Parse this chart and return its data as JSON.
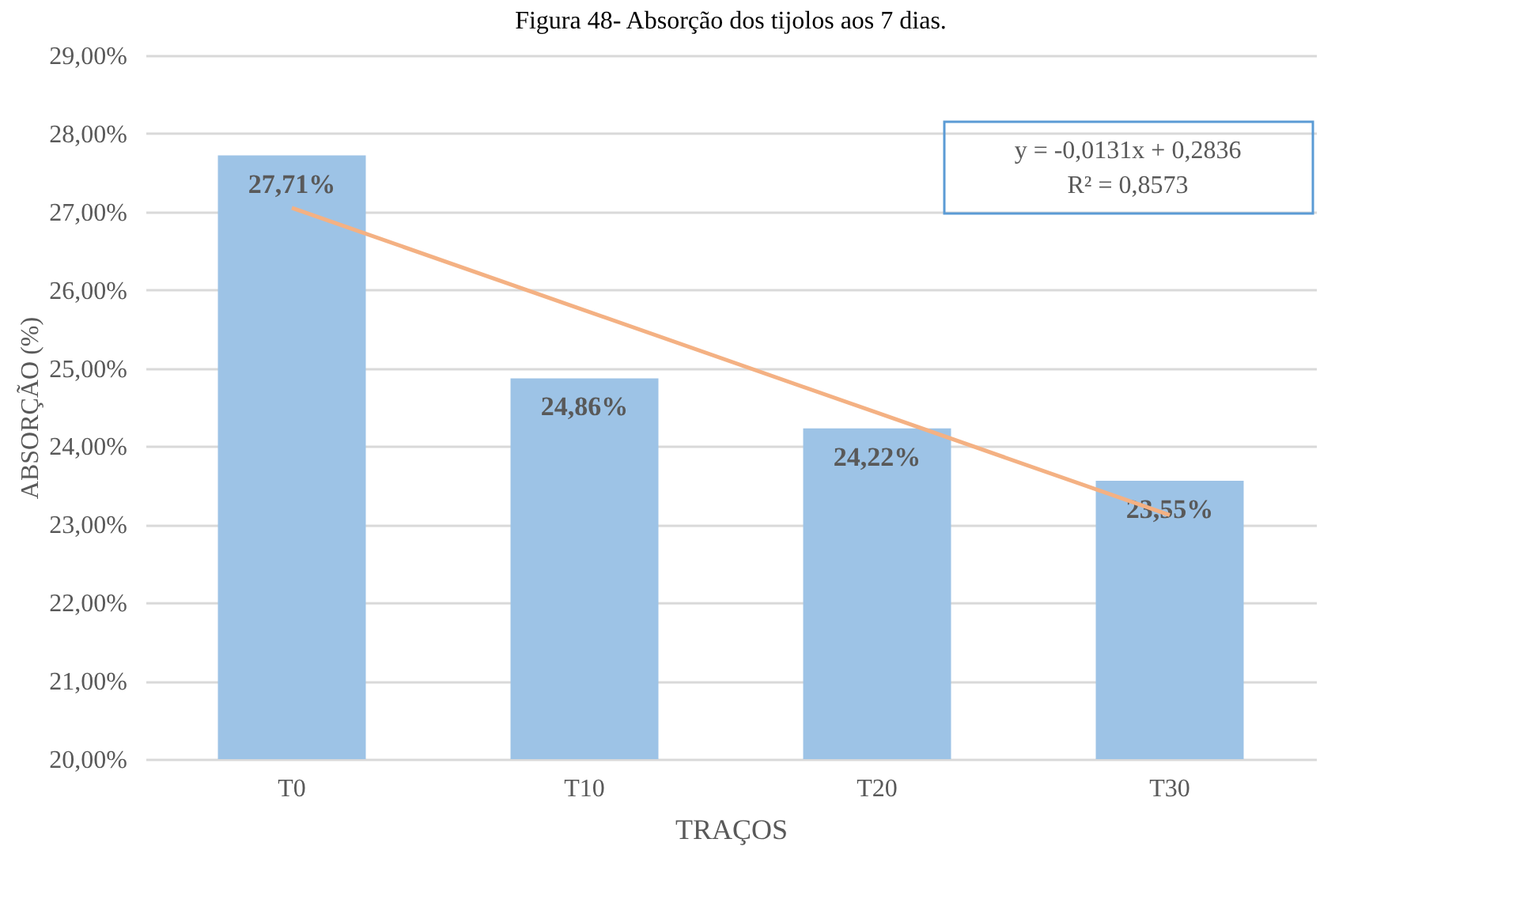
{
  "chart_data": {
    "type": "bar",
    "title": "Figura 48- Absorção dos tijolos aos 7 dias.",
    "xlabel": "TRAÇOS",
    "ylabel": "ABSORÇÃO (%)",
    "categories": [
      "T0",
      "T10",
      "T20",
      "T30"
    ],
    "series": [
      {
        "color": "#9dc3e6",
        "values": [
          27.71,
          24.86,
          24.22,
          23.55
        ],
        "value_labels": [
          "27,71%",
          "24,86%",
          "24,22%",
          "23,55%"
        ]
      },
      {
        "type": "line",
        "color": "#f4b183",
        "x": [
          "T0",
          "T10",
          "T20",
          "T30"
        ],
        "values": [
          27.05,
          25.74,
          24.43,
          23.12
        ]
      }
    ],
    "ylim": [
      20,
      29
    ],
    "yticks": [
      {
        "value": 20,
        "label": "20,00%"
      },
      {
        "value": 21,
        "label": "21,00%"
      },
      {
        "value": 22,
        "label": "22,00%"
      },
      {
        "value": 23,
        "label": "23,00%"
      },
      {
        "value": 24,
        "label": "24,00%"
      },
      {
        "value": 25,
        "label": "25,00%"
      },
      {
        "value": 26,
        "label": "26,00%"
      },
      {
        "value": 27,
        "label": "27,00%"
      },
      {
        "value": 28,
        "label": "28,00%"
      },
      {
        "value": 29,
        "label": "29,00%"
      }
    ],
    "grid": "y",
    "legend": false,
    "annotations": [
      "y = -0,0131x + 0,2836",
      "R² = 0,8573"
    ]
  }
}
